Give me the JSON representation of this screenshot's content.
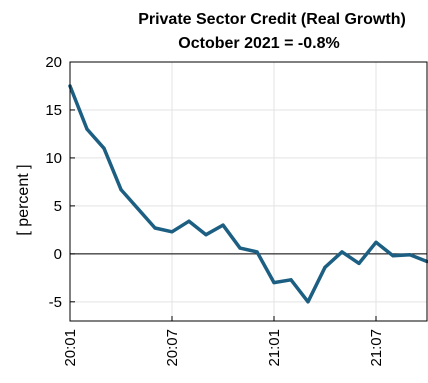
{
  "chart_data": {
    "type": "line",
    "title": "Private Sector Credit (Real Growth)",
    "subtitle": "October 2021 = -0.8%",
    "ylabel": "[ percent ]",
    "xlabel": "",
    "ylim": [
      -7,
      20
    ],
    "yticks": [
      -5,
      0,
      5,
      10,
      15,
      20
    ],
    "xtick_labels": [
      "20:01",
      "20:07",
      "21:01",
      "21:07"
    ],
    "xtick_index": [
      0,
      6,
      12,
      18
    ],
    "zero_line": true,
    "grid": true,
    "series_color": "#1c5f82",
    "series": [
      {
        "values": [
          17.5,
          13.0,
          11.0,
          6.7,
          4.7,
          2.7,
          2.3,
          3.4,
          2.0,
          3.0,
          0.6,
          0.2,
          -3.0,
          -2.7,
          -5.0,
          -1.4,
          0.2,
          -1.0,
          1.2,
          -0.2,
          -0.1,
          -0.8
        ]
      }
    ]
  }
}
